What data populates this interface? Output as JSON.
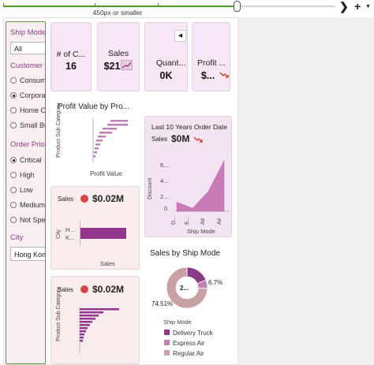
{
  "toolbar": {
    "ruler_label": "450px or smaller",
    "next_icon": "chevron-right-icon",
    "add_icon": "plus-icon"
  },
  "filters": {
    "ship_mode": {
      "label": "Ship Mode",
      "value": "All"
    },
    "customer_segment": {
      "label": "Customer Segment",
      "options": [
        {
          "label": "Consumer",
          "selected": false
        },
        {
          "label": "Corporate",
          "selected": true
        },
        {
          "label": "Home Office",
          "selected": false
        },
        {
          "label": "Small Business",
          "selected": false
        }
      ]
    },
    "order_priority": {
      "label": "Order Priority",
      "options": [
        {
          "label": "Critical",
          "selected": true
        },
        {
          "label": "High",
          "selected": false
        },
        {
          "label": "Low",
          "selected": false
        },
        {
          "label": "Medium",
          "selected": false
        },
        {
          "label": "Not Specified",
          "selected": false
        }
      ]
    },
    "city": {
      "label": "City",
      "value": "Hong Kong"
    }
  },
  "kpis": {
    "orders": {
      "label": "# of C...",
      "value": "16"
    },
    "sales": {
      "label": "Sales",
      "value": "$21"
    },
    "quantity": {
      "label": "Quant...",
      "value": "0K"
    },
    "profit": {
      "label": "Profit ...",
      "value": "$..."
    }
  },
  "profit_chart": {
    "title": "Profit Value by Pro...",
    "ylabel": "Product Sub Category",
    "xlabel": "Profit Value"
  },
  "trend_chart": {
    "title": "Last 10 Years Order Date",
    "measure_label": "Sales",
    "measure_value": "$0M",
    "ylabel": "Discount",
    "xlabel": "Ship Mode",
    "yticks": [
      "6...",
      "4...",
      "2...",
      "0"
    ],
    "xticks": [
      "D...",
      "E...",
      "Air",
      "Air"
    ]
  },
  "city_chart": {
    "measure_label": "Sales",
    "measure_value": "$0.02M",
    "ylabel": "City",
    "categories": [
      "H...",
      "K..."
    ],
    "xlabel": "Sales"
  },
  "subcat_chart": {
    "measure_label": "Sales",
    "measure_value": "$0.02M",
    "ylabel": "Product Sub Category",
    "xlabel": "Sales"
  },
  "donut": {
    "title": "Sales by Ship Mode",
    "center_label": "2...",
    "label_small": "6.7%",
    "label_large": "74.51%",
    "legend_title": "Ship Mode",
    "legend": [
      {
        "label": "Delivery Truck",
        "color": "#8b3a87"
      },
      {
        "label": "Express Air",
        "color": "#c27fb6"
      },
      {
        "label": "Regular Air",
        "color": "#c9a0a4"
      }
    ]
  },
  "colors": {
    "accent": "#8e3a8a",
    "bar": "#93358f",
    "area": "#c97bb8",
    "trend_down": "#c0392b",
    "ruler_green": "#4e9a2a"
  },
  "chart_data": [
    {
      "type": "pie",
      "title": "Sales by Ship Mode",
      "categories": [
        "Delivery Truck",
        "Express Air",
        "Regular Air"
      ],
      "values": [
        18.79,
        6.7,
        74.51
      ]
    },
    {
      "type": "bar",
      "orientation": "horizontal",
      "xlabel": "Sales",
      "ylabel": "City",
      "categories": [
        "H...",
        "K..."
      ],
      "values": [
        1,
        0
      ]
    },
    {
      "type": "area",
      "title": "Last 10 Years Order Date",
      "xlabel": "Ship Mode",
      "ylabel": "Discount",
      "categories": [
        "D...",
        "E...",
        "Air",
        "Air"
      ],
      "values": [
        1.2,
        0.4,
        2.6,
        6.6
      ],
      "ylim": [
        0,
        7
      ]
    }
  ]
}
